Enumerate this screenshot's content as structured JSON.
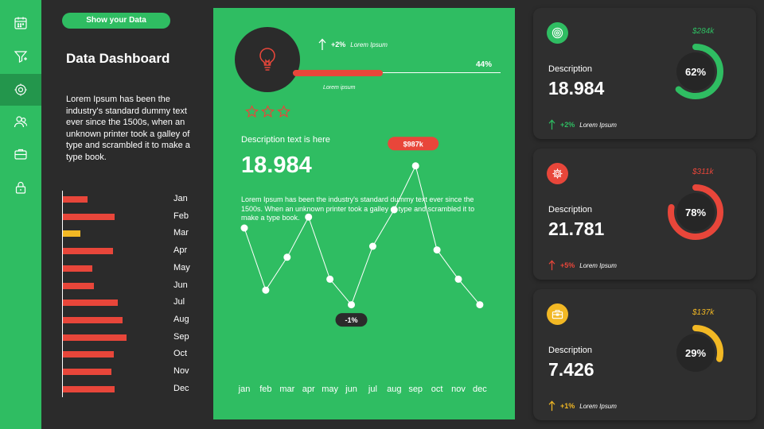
{
  "sidebar": {
    "items": [
      {
        "icon": "calendar-icon"
      },
      {
        "icon": "filter-icon"
      },
      {
        "icon": "settings-cog-icon",
        "active": true
      },
      {
        "icon": "users-icon"
      },
      {
        "icon": "briefcase-icon"
      },
      {
        "icon": "lock-icon"
      }
    ]
  },
  "left": {
    "pill_label": "Show your Data",
    "title": "Data Dashboard",
    "description": "Lorem Ipsum has been the industry's standard dummy text ever since the 1500s, when an unknown printer took a galley of type and scrambled it to make a type book."
  },
  "center": {
    "trend_pct": "+2%",
    "trend_label": "Lorem Ipsum",
    "progress_pct": "44%",
    "progress_value": 0.44,
    "progress_caption": "Lorem ipsum",
    "stars_total": 3,
    "description_title": "Description text is here",
    "value": "18.984",
    "description": "Lorem Ipsum has been the industry's standard dummy text ever since the 1500s. When an unknown printer took a galley of type and scrambled it to make a type book."
  },
  "cards": [
    {
      "icon": "target-icon",
      "icon_color": "#2fbd62",
      "description": "Description",
      "value": "18.984",
      "trend_pct": "+2%",
      "trend_label": "Lorem Ipsum",
      "trend_color": "#2fbd62",
      "amount": "$284k",
      "percent_label": "62%",
      "percent": 62,
      "color": "#2fbd62"
    },
    {
      "icon": "gear-icon",
      "icon_color": "#e8463a",
      "description": "Description",
      "value": "21.781",
      "trend_pct": "+5%",
      "trend_label": "Lorem Ipsum",
      "trend_color": "#e8463a",
      "amount": "$311k",
      "percent_label": "78%",
      "percent": 78,
      "color": "#e8463a"
    },
    {
      "icon": "toolbox-icon",
      "icon_color": "#f2b824",
      "description": "Description",
      "value": "7.426",
      "trend_pct": "+1%",
      "trend_label": "Lorem Ipsum",
      "trend_color": "#f2b824",
      "amount": "$137k",
      "percent_label": "29%",
      "percent": 29,
      "color": "#f2b824"
    }
  ],
  "chart_data": [
    {
      "type": "bar",
      "orientation": "horizontal",
      "categories": [
        "Jan",
        "Feb",
        "Mar",
        "Apr",
        "May",
        "Jun",
        "Jul",
        "Aug",
        "Sep",
        "Oct",
        "Nov",
        "Dec"
      ],
      "values": [
        31,
        65,
        22,
        63,
        37,
        39,
        69,
        75,
        80,
        64,
        61,
        65
      ],
      "colors": [
        "#e8463a",
        "#e8463a",
        "#f2b824",
        "#e8463a",
        "#e8463a",
        "#e8463a",
        "#e8463a",
        "#e8463a",
        "#e8463a",
        "#e8463a",
        "#e8463a",
        "#e8463a"
      ],
      "xlim": [
        0,
        100
      ],
      "grid": false
    },
    {
      "type": "line",
      "x": [
        "jan",
        "feb",
        "mar",
        "apr",
        "may",
        "jun",
        "jul",
        "aug",
        "sep",
        "oct",
        "nov",
        "dec"
      ],
      "values": [
        55,
        38,
        47,
        58,
        41,
        34,
        50,
        60,
        72,
        49,
        41,
        34
      ],
      "ylim": [
        0,
        100
      ],
      "annotations": [
        {
          "index": 8,
          "label": "$987k",
          "color": "#e8463a"
        },
        {
          "index": 5,
          "label": "-1%",
          "color": "#2b2b2b"
        }
      ],
      "grid": false
    }
  ]
}
